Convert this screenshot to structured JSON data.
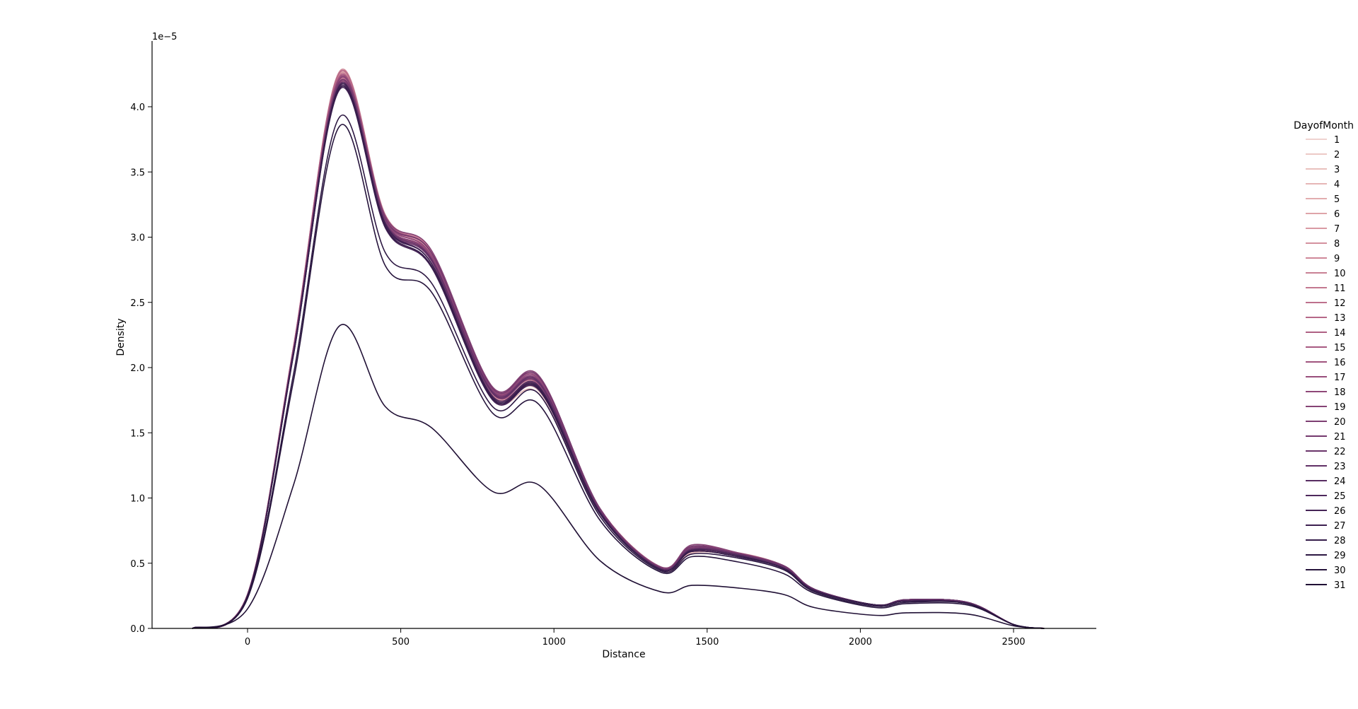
{
  "chart_data": {
    "type": "line",
    "title": "",
    "xlabel": "Distance",
    "ylabel": "Density",
    "y_offset_label": "1e−5",
    "xlim": [
      -320,
      2760
    ],
    "ylim": [
      0,
      4.5
    ],
    "xticks": [
      0,
      500,
      1000,
      1500,
      2000,
      2500
    ],
    "xtick_labels": [
      "0",
      "500",
      "1000",
      "1500",
      "2000",
      "2500"
    ],
    "yticks": [
      0,
      0.5,
      1.0,
      1.5,
      2.0,
      2.5,
      3.0,
      3.5,
      4.0
    ],
    "ytick_labels": [
      "0.0",
      "0.5",
      "1.0",
      "1.5",
      "2.0",
      "2.5",
      "3.0",
      "3.5",
      "4.0"
    ],
    "grid": false,
    "legend": {
      "title": "DayofMonth",
      "placement": "right"
    },
    "x": [
      -180,
      0,
      150,
      300,
      450,
      600,
      800,
      950,
      1150,
      1350,
      1450,
      1600,
      1750,
      1850,
      2050,
      2150,
      2350,
      2500,
      2600
    ],
    "profile_note_units": "Density ×1e-5",
    "series": [
      {
        "name": "1",
        "color": "#efd2cf",
        "values": [
          0.0,
          0.25,
          2.1,
          4.2,
          3.1,
          2.8,
          1.78,
          1.82,
          0.9,
          0.45,
          0.58,
          0.57,
          0.48,
          0.3,
          0.18,
          0.22,
          0.2,
          0.03,
          0.0
        ]
      },
      {
        "name": "2",
        "color": "#ecc9c6",
        "values": [
          0.0,
          0.25,
          2.12,
          4.22,
          3.12,
          2.84,
          1.8,
          1.84,
          0.9,
          0.46,
          0.59,
          0.58,
          0.48,
          0.3,
          0.18,
          0.22,
          0.2,
          0.03,
          0.0
        ]
      },
      {
        "name": "3",
        "color": "#e9c0bd",
        "values": [
          0.0,
          0.25,
          2.14,
          4.24,
          3.14,
          2.86,
          1.82,
          1.86,
          0.9,
          0.46,
          0.59,
          0.58,
          0.48,
          0.3,
          0.18,
          0.22,
          0.2,
          0.03,
          0.0
        ]
      },
      {
        "name": "4",
        "color": "#e6b6b6",
        "values": [
          0.0,
          0.26,
          2.12,
          4.18,
          3.08,
          2.78,
          1.76,
          1.8,
          0.88,
          0.45,
          0.58,
          0.56,
          0.47,
          0.3,
          0.18,
          0.21,
          0.2,
          0.03,
          0.0
        ]
      },
      {
        "name": "5",
        "color": "#e2adaf",
        "values": [
          0.0,
          0.26,
          2.16,
          4.26,
          3.16,
          2.88,
          1.83,
          1.88,
          0.92,
          0.46,
          0.6,
          0.58,
          0.48,
          0.3,
          0.18,
          0.22,
          0.2,
          0.03,
          0.0
        ]
      },
      {
        "name": "6",
        "color": "#dea4a9",
        "values": [
          0.0,
          0.25,
          2.13,
          4.21,
          3.11,
          2.83,
          1.79,
          1.84,
          0.9,
          0.46,
          0.59,
          0.57,
          0.48,
          0.3,
          0.18,
          0.22,
          0.2,
          0.03,
          0.0
        ]
      },
      {
        "name": "7",
        "color": "#d99aa3",
        "values": [
          0.0,
          0.26,
          2.15,
          4.25,
          3.15,
          2.87,
          1.82,
          1.87,
          0.91,
          0.46,
          0.6,
          0.58,
          0.48,
          0.3,
          0.18,
          0.22,
          0.2,
          0.03,
          0.0
        ]
      },
      {
        "name": "8",
        "color": "#d4919e",
        "values": [
          0.0,
          0.25,
          2.12,
          4.19,
          3.1,
          2.82,
          1.79,
          1.83,
          0.9,
          0.46,
          0.59,
          0.57,
          0.47,
          0.3,
          0.18,
          0.22,
          0.2,
          0.03,
          0.0
        ]
      },
      {
        "name": "9",
        "color": "#cf8899",
        "values": [
          0.0,
          0.26,
          2.16,
          4.27,
          3.17,
          2.89,
          1.84,
          1.89,
          0.92,
          0.47,
          0.61,
          0.58,
          0.48,
          0.3,
          0.18,
          0.22,
          0.2,
          0.03,
          0.0
        ]
      },
      {
        "name": "10",
        "color": "#c98094",
        "values": [
          0.0,
          0.25,
          2.13,
          4.22,
          3.12,
          2.84,
          1.8,
          1.85,
          0.9,
          0.46,
          0.6,
          0.57,
          0.48,
          0.3,
          0.18,
          0.22,
          0.2,
          0.03,
          0.0
        ]
      },
      {
        "name": "11",
        "color": "#c37890",
        "values": [
          0.0,
          0.26,
          2.15,
          4.24,
          3.14,
          2.86,
          1.82,
          1.88,
          0.91,
          0.46,
          0.61,
          0.57,
          0.48,
          0.3,
          0.18,
          0.22,
          0.2,
          0.03,
          0.0
        ]
      },
      {
        "name": "12",
        "color": "#bd708c",
        "values": [
          0.0,
          0.25,
          2.12,
          4.2,
          3.11,
          2.83,
          1.8,
          1.85,
          0.9,
          0.46,
          0.6,
          0.57,
          0.48,
          0.3,
          0.18,
          0.22,
          0.2,
          0.03,
          0.0
        ]
      },
      {
        "name": "13",
        "color": "#b66888",
        "values": [
          0.0,
          0.26,
          2.16,
          4.26,
          3.16,
          2.88,
          1.83,
          1.89,
          0.92,
          0.47,
          0.62,
          0.58,
          0.48,
          0.3,
          0.18,
          0.22,
          0.2,
          0.03,
          0.0
        ]
      },
      {
        "name": "14",
        "color": "#af6184",
        "values": [
          0.0,
          0.25,
          2.13,
          4.21,
          3.12,
          2.84,
          1.81,
          1.87,
          0.91,
          0.46,
          0.61,
          0.57,
          0.48,
          0.3,
          0.18,
          0.22,
          0.2,
          0.03,
          0.0
        ]
      },
      {
        "name": "15",
        "color": "#a85a81",
        "values": [
          0.0,
          0.26,
          2.15,
          4.23,
          3.14,
          2.86,
          1.82,
          1.89,
          0.91,
          0.46,
          0.62,
          0.57,
          0.48,
          0.3,
          0.18,
          0.22,
          0.2,
          0.03,
          0.0
        ]
      },
      {
        "name": "16",
        "color": "#a0547e",
        "values": [
          0.0,
          0.25,
          2.12,
          4.19,
          3.12,
          2.85,
          1.82,
          1.9,
          0.91,
          0.46,
          0.62,
          0.57,
          0.48,
          0.3,
          0.18,
          0.22,
          0.2,
          0.03,
          0.0
        ]
      },
      {
        "name": "17",
        "color": "#984e7b",
        "values": [
          0.0,
          0.26,
          2.14,
          4.22,
          3.15,
          2.88,
          1.84,
          1.92,
          0.92,
          0.47,
          0.63,
          0.58,
          0.48,
          0.3,
          0.18,
          0.22,
          0.2,
          0.03,
          0.0
        ]
      },
      {
        "name": "18",
        "color": "#8f4878",
        "values": [
          0.0,
          0.25,
          2.12,
          4.18,
          3.13,
          2.86,
          1.83,
          1.91,
          0.91,
          0.46,
          0.62,
          0.57,
          0.48,
          0.3,
          0.18,
          0.22,
          0.2,
          0.03,
          0.0
        ]
      },
      {
        "name": "19",
        "color": "#864375",
        "values": [
          0.0,
          0.26,
          2.14,
          4.21,
          3.16,
          2.9,
          1.85,
          1.94,
          0.92,
          0.47,
          0.64,
          0.58,
          0.48,
          0.3,
          0.18,
          0.22,
          0.2,
          0.03,
          0.0
        ]
      },
      {
        "name": "20",
        "color": "#7d3e72",
        "values": [
          0.0,
          0.25,
          2.12,
          4.17,
          3.12,
          2.84,
          1.82,
          1.9,
          0.91,
          0.46,
          0.62,
          0.57,
          0.48,
          0.3,
          0.18,
          0.22,
          0.2,
          0.03,
          0.0
        ]
      },
      {
        "name": "21",
        "color": "#74396e",
        "values": [
          0.0,
          0.25,
          2.13,
          4.19,
          3.14,
          2.88,
          1.84,
          1.93,
          0.92,
          0.46,
          0.63,
          0.57,
          0.48,
          0.3,
          0.18,
          0.22,
          0.2,
          0.03,
          0.0
        ]
      },
      {
        "name": "22",
        "color": "#6a346a",
        "values": [
          0.0,
          0.25,
          2.11,
          4.16,
          3.1,
          2.82,
          1.8,
          1.88,
          0.9,
          0.46,
          0.61,
          0.57,
          0.47,
          0.3,
          0.18,
          0.22,
          0.2,
          0.03,
          0.0
        ]
      },
      {
        "name": "23",
        "color": "#613066",
        "values": [
          0.0,
          0.25,
          2.12,
          4.17,
          3.11,
          2.83,
          1.81,
          1.89,
          0.9,
          0.46,
          0.61,
          0.57,
          0.47,
          0.3,
          0.18,
          0.22,
          0.2,
          0.03,
          0.0
        ]
      },
      {
        "name": "24",
        "color": "#572c61",
        "values": [
          0.0,
          0.25,
          2.1,
          4.14,
          3.08,
          2.78,
          1.76,
          1.84,
          0.88,
          0.45,
          0.59,
          0.55,
          0.46,
          0.29,
          0.18,
          0.21,
          0.19,
          0.03,
          0.0
        ]
      },
      {
        "name": "25",
        "color": "#4e285c",
        "values": [
          0.0,
          0.25,
          2.11,
          4.15,
          3.09,
          2.8,
          1.78,
          1.86,
          0.89,
          0.45,
          0.6,
          0.56,
          0.46,
          0.29,
          0.18,
          0.21,
          0.19,
          0.03,
          0.0
        ]
      },
      {
        "name": "26",
        "color": "#452456",
        "values": [
          0.0,
          0.25,
          2.1,
          4.13,
          3.07,
          2.77,
          1.75,
          1.83,
          0.88,
          0.45,
          0.59,
          0.55,
          0.46,
          0.29,
          0.18,
          0.21,
          0.19,
          0.03,
          0.0
        ]
      },
      {
        "name": "27",
        "color": "#3d2050",
        "values": [
          0.0,
          0.25,
          2.11,
          4.16,
          3.1,
          2.8,
          1.77,
          1.85,
          0.89,
          0.45,
          0.6,
          0.56,
          0.46,
          0.29,
          0.18,
          0.21,
          0.19,
          0.03,
          0.0
        ]
      },
      {
        "name": "28",
        "color": "#351c4a",
        "values": [
          0.0,
          0.25,
          2.1,
          4.14,
          3.08,
          2.78,
          1.76,
          1.84,
          0.88,
          0.45,
          0.59,
          0.55,
          0.46,
          0.29,
          0.18,
          0.21,
          0.19,
          0.03,
          0.0
        ]
      },
      {
        "name": "29",
        "color": "#2d1843",
        "values": [
          0.0,
          0.24,
          1.95,
          3.92,
          2.88,
          2.65,
          1.7,
          1.8,
          0.86,
          0.44,
          0.57,
          0.54,
          0.45,
          0.28,
          0.17,
          0.2,
          0.19,
          0.03,
          0.0
        ]
      },
      {
        "name": "30",
        "color": "#26143c",
        "values": [
          0.0,
          0.23,
          1.9,
          3.85,
          2.78,
          2.58,
          1.65,
          1.72,
          0.83,
          0.43,
          0.55,
          0.51,
          0.42,
          0.27,
          0.16,
          0.19,
          0.18,
          0.03,
          0.0
        ]
      },
      {
        "name": "31",
        "color": "#201035",
        "values": [
          0.0,
          0.15,
          1.1,
          2.32,
          1.7,
          1.54,
          1.05,
          1.1,
          0.52,
          0.28,
          0.33,
          0.31,
          0.26,
          0.16,
          0.1,
          0.12,
          0.11,
          0.02,
          0.0
        ]
      }
    ]
  }
}
